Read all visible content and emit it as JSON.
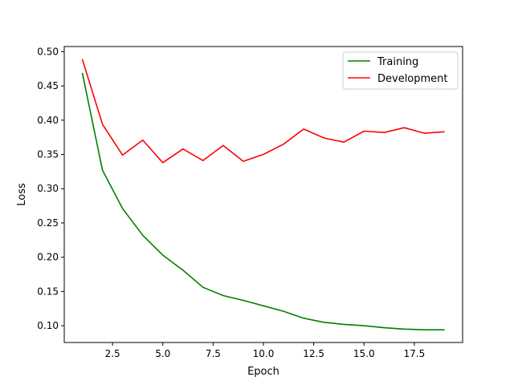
{
  "chart_data": {
    "type": "line",
    "title": "",
    "xlabel": "Epoch",
    "ylabel": "Loss",
    "xlim": [
      0.1,
      19.9
    ],
    "ylim": [
      0.0755,
      0.5075
    ],
    "x_ticks": [
      2.5,
      5.0,
      7.5,
      10.0,
      12.5,
      15.0,
      17.5
    ],
    "x_tick_labels": [
      "2.5",
      "5.0",
      "7.5",
      "10.0",
      "12.5",
      "15.0",
      "17.5"
    ],
    "y_ticks": [
      0.1,
      0.15,
      0.2,
      0.25,
      0.3,
      0.35,
      0.4,
      0.45,
      0.5
    ],
    "y_tick_labels": [
      "0.10",
      "0.15",
      "0.20",
      "0.25",
      "0.30",
      "0.35",
      "0.40",
      "0.45",
      "0.50"
    ],
    "grid": false,
    "legend_position": "top-right",
    "x": [
      1,
      2,
      3,
      4,
      5,
      6,
      7,
      8,
      9,
      10,
      11,
      12,
      13,
      14,
      15,
      16,
      17,
      18,
      19
    ],
    "series": [
      {
        "name": "Training",
        "color": "#008000",
        "values": [
          0.469,
          0.327,
          0.271,
          0.232,
          0.203,
          0.181,
          0.156,
          0.144,
          0.137,
          0.129,
          0.121,
          0.111,
          0.105,
          0.102,
          0.1,
          0.097,
          0.095,
          0.094,
          0.094
        ]
      },
      {
        "name": "Development",
        "color": "#ff0000",
        "values": [
          0.489,
          0.394,
          0.349,
          0.371,
          0.338,
          0.358,
          0.341,
          0.363,
          0.34,
          0.35,
          0.365,
          0.387,
          0.374,
          0.368,
          0.384,
          0.382,
          0.389,
          0.381,
          0.383
        ]
      }
    ]
  }
}
